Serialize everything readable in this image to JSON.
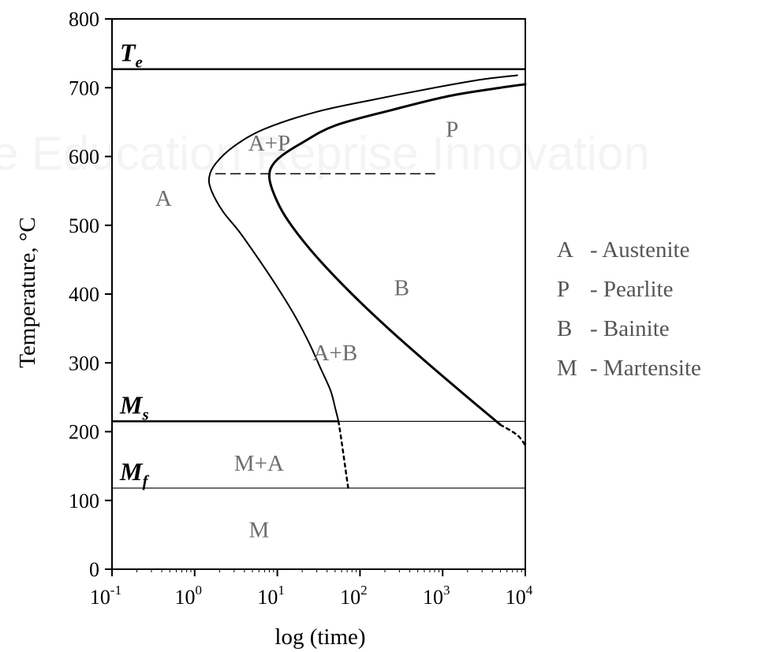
{
  "watermark": "e Education Reprise Innovation",
  "chart_data": {
    "type": "line",
    "xlabel": "log (time)",
    "ylabel": "Temperature, °C",
    "xscale": "log",
    "xlim": [
      0.1,
      10000
    ],
    "ylim": [
      0,
      800
    ],
    "x_ticks": [
      {
        "value": 0.1,
        "base": "10",
        "exp": "-1"
      },
      {
        "value": 1,
        "base": "10",
        "exp": "0"
      },
      {
        "value": 10,
        "base": "10",
        "exp": "1"
      },
      {
        "value": 100,
        "base": "10",
        "exp": "2"
      },
      {
        "value": 1000,
        "base": "10",
        "exp": "3"
      },
      {
        "value": 10000,
        "base": "10",
        "exp": "4"
      }
    ],
    "y_ticks": [
      "0",
      "100",
      "200",
      "300",
      "400",
      "500",
      "600",
      "700",
      "800"
    ],
    "horizontal_lines": [
      {
        "label": "T",
        "sub": "e",
        "y": 727
      },
      {
        "label": "M",
        "sub": "s",
        "y": 215
      },
      {
        "label": "M",
        "sub": "f",
        "y": 118
      }
    ],
    "series": [
      {
        "style": "start",
        "x": [
          8000,
          3000,
          800,
          150,
          30,
          7,
          3,
          1.8,
          1.5,
          1.6,
          2.2,
          3.5,
          6,
          10,
          16,
          24,
          34,
          44,
          50,
          55
        ],
        "y": [
          718,
          712,
          700,
          683,
          665,
          640,
          615,
          590,
          570,
          550,
          520,
          490,
          450,
          410,
          370,
          330,
          290,
          260,
          235,
          215
        ]
      },
      {
        "style": "finish",
        "x": [
          10000,
          5000,
          1200,
          250,
          50,
          20,
          11,
          8.5,
          8,
          8.8,
          11.5,
          17,
          32,
          80,
          220,
          650,
          2000,
          5000
        ],
        "y": [
          705,
          700,
          688,
          668,
          645,
          620,
          600,
          585,
          570,
          550,
          520,
          490,
          450,
          400,
          350,
          300,
          250,
          210
        ]
      },
      {
        "style": "pearlite-bainite-boundary",
        "x": [
          1.8,
          800
        ],
        "y": [
          575,
          575
        ]
      },
      {
        "style": "martensite-extension",
        "x": [
          55,
          60,
          66,
          72
        ],
        "y": [
          215,
          185,
          150,
          118
        ]
      },
      {
        "style": "finish-extension",
        "x": [
          5000,
          8000,
          10000
        ],
        "y": [
          210,
          195,
          180
        ]
      }
    ],
    "regions": [
      {
        "label": "A",
        "x": 0.42,
        "y": 540
      },
      {
        "label": "A+P",
        "x": 8,
        "y": 620
      },
      {
        "label": "P",
        "x": 1300,
        "y": 640
      },
      {
        "label": "B",
        "x": 320,
        "y": 410
      },
      {
        "label": "A+B",
        "x": 50,
        "y": 315
      },
      {
        "label": "M+A",
        "x": 6,
        "y": 155
      },
      {
        "label": "M",
        "x": 6,
        "y": 58
      }
    ],
    "legend": [
      {
        "key": "A",
        "text": "- Austenite"
      },
      {
        "key": "P",
        "text": "- Pearlite"
      },
      {
        "key": "B",
        "text": "- Bainite"
      },
      {
        "key": "M",
        "text": "- Martensite"
      }
    ],
    "legend_position": "right"
  }
}
